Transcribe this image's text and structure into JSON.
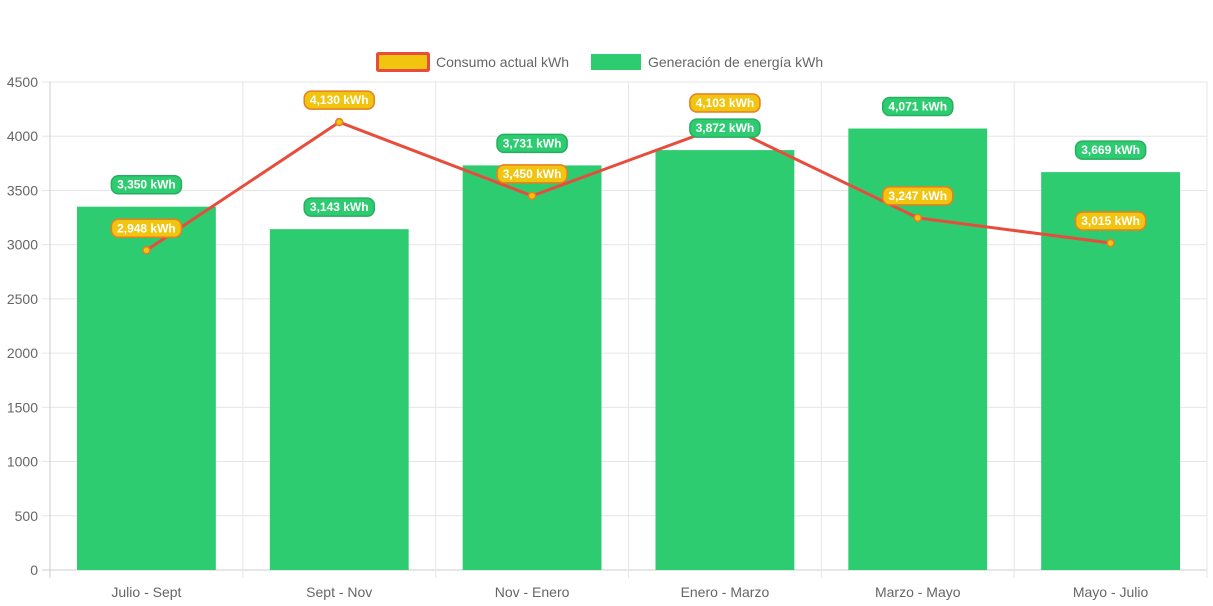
{
  "chart_data": {
    "type": "bar",
    "categories": [
      "Julio - Sept",
      "Sept - Nov",
      "Nov - Enero",
      "Enero - Marzo",
      "Marzo - Mayo",
      "Mayo - Julio"
    ],
    "series": [
      {
        "name": "Consumo actual kWh",
        "type": "line",
        "values": [
          2948,
          4130,
          3450,
          4103,
          3247,
          3015
        ],
        "labels": [
          "2,948 kWh",
          "4,130 kWh",
          "3,450 kWh",
          "4,103 kWh",
          "3,247 kWh",
          "3,015 kWh"
        ],
        "color": "#e74c3c",
        "fill": "#f1c40f"
      },
      {
        "name": "Generación de energía kWh",
        "type": "bar",
        "values": [
          3350,
          3143,
          3731,
          3872,
          4071,
          3669
        ],
        "labels": [
          "3,350 kWh",
          "3,143 kWh",
          "3,731 kWh",
          "3,872 kWh",
          "4,071 kWh",
          "3,669 kWh"
        ],
        "color": "#2ecc71"
      }
    ],
    "ylim": [
      0,
      4500
    ],
    "yticks": [
      "0",
      "500",
      "1000",
      "1500",
      "2000",
      "2500",
      "3000",
      "3500",
      "4000",
      "4500"
    ],
    "grid": true,
    "legend_position": "top-center",
    "title": "",
    "xlabel": "",
    "ylabel": ""
  }
}
